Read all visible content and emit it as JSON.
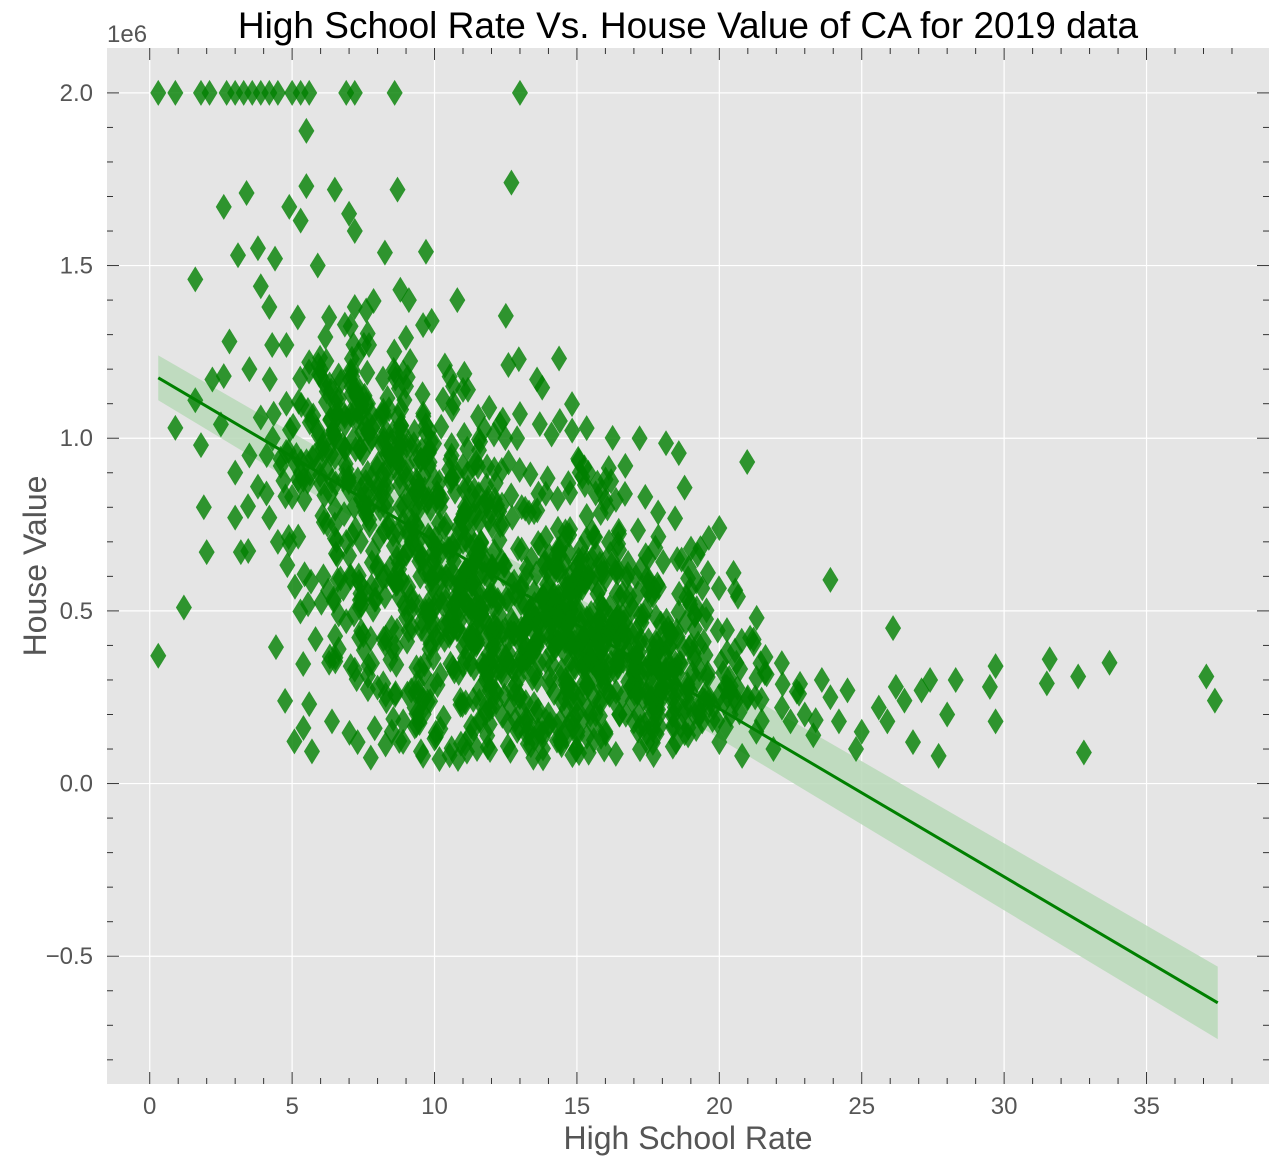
{
  "chart_data": {
    "type": "scatter",
    "title": "High School Rate  Vs. House Value of CA for 2019 data",
    "xlabel": "High School Rate",
    "ylabel": "House Value",
    "y_offset_label": "1e6",
    "xlim": [
      -1.5,
      39.3
    ],
    "ylim": [
      -0.87,
      2.13
    ],
    "y_scale_factor": 1000000,
    "xticks": [
      0,
      5,
      10,
      15,
      20,
      25,
      30,
      35
    ],
    "xtick_labels": [
      "0",
      "5",
      "10",
      "15",
      "20",
      "25",
      "30",
      "35"
    ],
    "yticks": [
      -0.5,
      0.0,
      0.5,
      1.0,
      1.5,
      2.0
    ],
    "ytick_labels": [
      "−0.5",
      "0.0",
      "0.5",
      "1.0",
      "1.5",
      "2.0"
    ],
    "grid": true,
    "colors": {
      "background": "#e5e5e5",
      "grid": "#ffffff",
      "point": "#008000",
      "regression_line": "#008000",
      "confidence_band": "#b9d9b9"
    },
    "marker": "diamond",
    "regression": {
      "x": [
        0.3,
        37.5
      ],
      "y": [
        1.175,
        -0.635
      ],
      "ci_low_start": 1.11,
      "ci_high_start": 1.24,
      "ci_low_end": -0.74,
      "ci_high_end": -0.53
    },
    "points": [
      [
        0.3,
        2.0
      ],
      [
        0.9,
        2.0
      ],
      [
        1.8,
        2.0
      ],
      [
        2.1,
        2.0
      ],
      [
        2.7,
        2.0
      ],
      [
        3.0,
        2.0
      ],
      [
        3.3,
        2.0
      ],
      [
        3.6,
        2.0
      ],
      [
        3.9,
        2.0
      ],
      [
        4.2,
        2.0
      ],
      [
        4.5,
        2.0
      ],
      [
        5.0,
        2.0
      ],
      [
        5.3,
        2.0
      ],
      [
        5.6,
        2.0
      ],
      [
        6.9,
        2.0
      ],
      [
        7.2,
        2.0
      ],
      [
        8.6,
        2.0
      ],
      [
        13.0,
        2.0
      ],
      [
        5.5,
        1.89
      ],
      [
        12.7,
        1.74
      ],
      [
        8.7,
        1.72
      ],
      [
        3.4,
        1.71
      ],
      [
        5.5,
        1.73
      ],
      [
        6.5,
        1.72
      ],
      [
        2.6,
        1.67
      ],
      [
        4.9,
        1.67
      ],
      [
        7.0,
        1.65
      ],
      [
        5.3,
        1.63
      ],
      [
        7.2,
        1.6
      ],
      [
        3.1,
        1.53
      ],
      [
        3.8,
        1.55
      ],
      [
        4.4,
        1.52
      ],
      [
        9.7,
        1.54
      ],
      [
        5.9,
        1.5
      ],
      [
        1.6,
        1.46
      ],
      [
        3.9,
        1.44
      ],
      [
        8.8,
        1.43
      ],
      [
        9.1,
        1.4
      ],
      [
        10.8,
        1.4
      ],
      [
        4.2,
        1.38
      ],
      [
        5.2,
        1.35
      ],
      [
        6.3,
        1.35
      ],
      [
        7.2,
        1.38
      ],
      [
        7.6,
        1.37
      ],
      [
        9.9,
        1.34
      ],
      [
        2.8,
        1.28
      ],
      [
        4.3,
        1.27
      ],
      [
        4.8,
        1.27
      ],
      [
        5.6,
        1.22
      ],
      [
        6.0,
        1.2
      ],
      [
        7.1,
        1.23
      ],
      [
        7.7,
        1.27
      ],
      [
        0.3,
        0.37
      ],
      [
        1.2,
        0.51
      ],
      [
        0.9,
        1.03
      ],
      [
        1.8,
        0.98
      ],
      [
        1.9,
        0.8
      ],
      [
        2.0,
        0.67
      ],
      [
        2.5,
        1.04
      ],
      [
        3.0,
        0.77
      ],
      [
        3.2,
        0.67
      ],
      [
        3.5,
        0.95
      ],
      [
        3.8,
        0.86
      ],
      [
        4.1,
        0.84
      ],
      [
        4.5,
        0.7
      ],
      [
        4.8,
        1.1
      ],
      [
        5.1,
        0.57
      ],
      [
        5.4,
        0.88
      ],
      [
        5.6,
        0.23
      ],
      [
        5.8,
        0.95
      ],
      [
        6.1,
        0.6
      ],
      [
        6.3,
        0.35
      ],
      [
        6.4,
        0.18
      ],
      [
        6.6,
        0.59
      ],
      [
        6.9,
        0.47
      ],
      [
        7.2,
        0.33
      ],
      [
        7.3,
        0.12
      ],
      [
        7.5,
        0.43
      ],
      [
        7.9,
        0.16
      ],
      [
        8.2,
        0.29
      ],
      [
        8.5,
        0.15
      ],
      [
        8.9,
        0.18
      ],
      [
        9.3,
        0.22
      ],
      [
        9.6,
        0.08
      ],
      [
        10.0,
        0.13
      ],
      [
        2.2,
        1.17
      ],
      [
        1.6,
        1.11
      ],
      [
        2.6,
        1.18
      ],
      [
        3.5,
        1.2
      ],
      [
        3.9,
        1.06
      ],
      [
        4.2,
        0.77
      ],
      [
        4.6,
        0.92
      ],
      [
        5.0,
        0.83
      ],
      [
        5.3,
        0.9
      ],
      [
        5.7,
        1.05
      ],
      [
        6.0,
        1.18
      ],
      [
        6.2,
        0.96
      ],
      [
        6.5,
        1.0
      ],
      [
        6.8,
        0.88
      ],
      [
        7.0,
        0.85
      ],
      [
        7.4,
        0.97
      ],
      [
        7.6,
        1.1
      ],
      [
        7.8,
        1.0
      ],
      [
        8.0,
        0.85
      ],
      [
        8.2,
        1.08
      ],
      [
        8.4,
        0.75
      ],
      [
        8.6,
        0.92
      ],
      [
        8.8,
        0.8
      ],
      [
        9.0,
        1.15
      ],
      [
        9.2,
        0.7
      ],
      [
        9.4,
        0.85
      ],
      [
        9.6,
        0.65
      ],
      [
        9.8,
        0.92
      ],
      [
        10.0,
        0.55
      ],
      [
        10.2,
        0.8
      ],
      [
        10.4,
        0.6
      ],
      [
        10.6,
        0.95
      ],
      [
        10.8,
        0.45
      ],
      [
        11.0,
        0.7
      ],
      [
        11.2,
        0.38
      ],
      [
        11.4,
        0.85
      ],
      [
        11.6,
        0.55
      ],
      [
        11.8,
        0.3
      ],
      [
        12.0,
        0.62
      ],
      [
        12.2,
        0.45
      ],
      [
        12.4,
        0.75
      ],
      [
        12.6,
        0.35
      ],
      [
        12.8,
        0.55
      ],
      [
        13.0,
        0.25
      ],
      [
        13.2,
        0.45
      ],
      [
        13.4,
        0.65
      ],
      [
        13.6,
        0.3
      ],
      [
        13.8,
        0.5
      ],
      [
        14.0,
        0.2
      ],
      [
        14.2,
        0.42
      ],
      [
        14.4,
        0.62
      ],
      [
        14.6,
        0.3
      ],
      [
        14.8,
        0.5
      ],
      [
        15.0,
        0.2
      ],
      [
        15.2,
        0.38
      ],
      [
        15.4,
        0.6
      ],
      [
        15.6,
        0.25
      ],
      [
        15.8,
        0.45
      ],
      [
        16.0,
        0.15
      ],
      [
        16.2,
        0.35
      ],
      [
        16.4,
        0.55
      ],
      [
        16.6,
        0.25
      ],
      [
        16.8,
        0.42
      ],
      [
        17.0,
        0.18
      ],
      [
        17.2,
        0.32
      ],
      [
        17.4,
        0.5
      ],
      [
        17.6,
        0.22
      ],
      [
        17.8,
        0.38
      ],
      [
        18.0,
        0.28
      ],
      [
        18.2,
        0.45
      ],
      [
        18.4,
        0.2
      ],
      [
        18.6,
        0.35
      ],
      [
        18.8,
        0.25
      ],
      [
        19.0,
        0.4
      ],
      [
        19.2,
        0.3
      ],
      [
        19.4,
        0.18
      ],
      [
        19.6,
        0.32
      ],
      [
        19.8,
        0.22
      ],
      [
        20.0,
        0.12
      ],
      [
        20.2,
        0.28
      ],
      [
        20.4,
        0.2
      ],
      [
        20.6,
        0.35
      ],
      [
        20.8,
        0.08
      ],
      [
        21.0,
        0.25
      ],
      [
        21.3,
        0.15
      ],
      [
        21.6,
        0.32
      ],
      [
        21.9,
        0.1
      ],
      [
        22.2,
        0.22
      ],
      [
        22.5,
        0.18
      ],
      [
        22.8,
        0.26
      ],
      [
        23.0,
        0.2
      ],
      [
        23.3,
        0.14
      ],
      [
        23.6,
        0.3
      ],
      [
        23.9,
        0.25
      ],
      [
        24.2,
        0.18
      ],
      [
        24.5,
        0.27
      ],
      [
        24.8,
        0.1
      ],
      [
        25.0,
        0.15
      ],
      [
        25.6,
        0.22
      ],
      [
        25.9,
        0.18
      ],
      [
        26.2,
        0.28
      ],
      [
        26.5,
        0.24
      ],
      [
        26.8,
        0.12
      ],
      [
        27.1,
        0.27
      ],
      [
        27.4,
        0.3
      ],
      [
        27.7,
        0.08
      ],
      [
        28.0,
        0.2
      ],
      [
        28.3,
        0.3
      ],
      [
        29.5,
        0.28
      ],
      [
        29.7,
        0.18
      ],
      [
        29.7,
        0.34
      ],
      [
        31.5,
        0.29
      ],
      [
        31.6,
        0.36
      ],
      [
        32.6,
        0.31
      ],
      [
        32.8,
        0.09
      ],
      [
        33.7,
        0.35
      ],
      [
        37.1,
        0.31
      ],
      [
        37.4,
        0.24
      ],
      [
        20.0,
        0.74
      ],
      [
        20.5,
        0.61
      ],
      [
        19.6,
        0.61
      ],
      [
        23.9,
        0.59
      ],
      [
        26.1,
        0.45
      ],
      [
        17.4,
        0.83
      ],
      [
        16.0,
        0.82
      ],
      [
        17.2,
        1.0
      ],
      [
        16.7,
        0.92
      ],
      [
        15.4,
        0.9
      ],
      [
        14.7,
        0.87
      ],
      [
        14.4,
        1.05
      ],
      [
        13.6,
        1.17
      ],
      [
        13.0,
        1.07
      ],
      [
        12.9,
        1.0
      ],
      [
        11.0,
        1.14
      ],
      [
        10.6,
        0.98
      ],
      [
        11.6,
        0.99
      ],
      [
        12.1,
        0.91
      ],
      [
        12.6,
        0.93
      ],
      [
        10.4,
        0.75
      ],
      [
        10.1,
        0.68
      ],
      [
        9.5,
        0.6
      ],
      [
        9.0,
        0.48
      ],
      [
        8.7,
        0.58
      ],
      [
        8.3,
        0.6
      ],
      [
        7.8,
        0.64
      ],
      [
        7.4,
        0.55
      ],
      [
        6.9,
        0.7
      ],
      [
        6.5,
        0.75
      ]
    ],
    "dense_clusters": [
      {
        "cx": 12.0,
        "cy": 0.55,
        "sx": 3.0,
        "sy": 0.25,
        "n": 520
      },
      {
        "cx": 15.0,
        "cy": 0.4,
        "sx": 2.6,
        "sy": 0.18,
        "n": 360
      },
      {
        "cx": 8.5,
        "cy": 0.85,
        "sx": 1.8,
        "sy": 0.2,
        "n": 220
      },
      {
        "cx": 6.8,
        "cy": 1.05,
        "sx": 1.2,
        "sy": 0.15,
        "n": 90
      },
      {
        "cx": 18.5,
        "cy": 0.3,
        "sx": 1.8,
        "sy": 0.1,
        "n": 120
      }
    ]
  }
}
